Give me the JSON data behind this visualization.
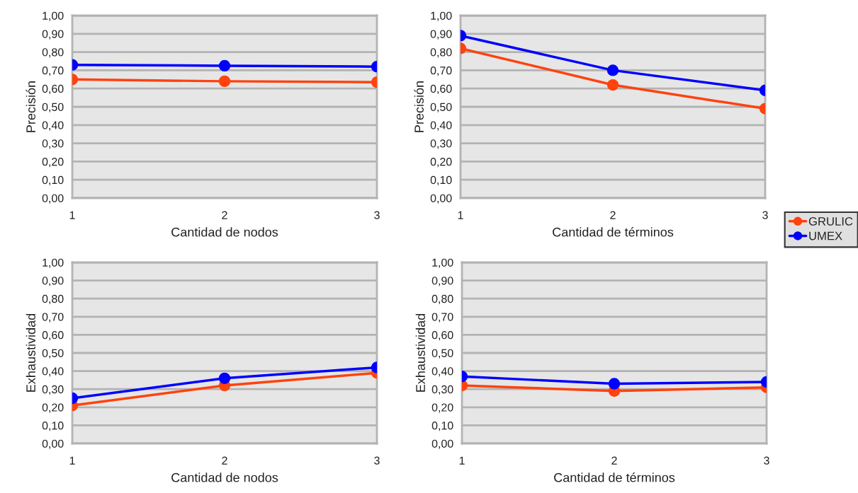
{
  "chart_data": [
    {
      "type": "line",
      "xlabel": "Cantidad de nodos",
      "ylabel": "Precisión",
      "categories": [
        "1",
        "2",
        "3"
      ],
      "ylim": [
        0,
        1
      ],
      "yticks": [
        {
          "value": 0,
          "label": "0,00"
        },
        {
          "value": 0.1,
          "label": "0,10"
        },
        {
          "value": 0.2,
          "label": "0,20"
        },
        {
          "value": 0.3,
          "label": "0,30"
        },
        {
          "value": 0.4,
          "label": "0,40"
        },
        {
          "value": 0.5,
          "label": "0,50"
        },
        {
          "value": 0.6,
          "label": "0,60"
        },
        {
          "value": 0.7,
          "label": "0,70"
        },
        {
          "value": 0.8,
          "label": "0,80"
        },
        {
          "value": 0.9,
          "label": "0,90"
        },
        {
          "value": 1,
          "label": "1,00"
        }
      ],
      "grid": "y",
      "marker": "circle",
      "series": [
        {
          "color": "#ff420e",
          "values": [
            0.65,
            0.64,
            0.635
          ]
        },
        {
          "color": "#0000ff",
          "values": [
            0.73,
            0.725,
            0.72
          ]
        }
      ]
    },
    {
      "type": "line",
      "xlabel": "Cantidad de términos",
      "ylabel": "Precisión",
      "categories": [
        "1",
        "2",
        "3"
      ],
      "ylim": [
        0,
        1
      ],
      "yticks": [
        {
          "value": 0,
          "label": "0,00"
        },
        {
          "value": 0.1,
          "label": "0,10"
        },
        {
          "value": 0.2,
          "label": "0,20"
        },
        {
          "value": 0.3,
          "label": "0,30"
        },
        {
          "value": 0.4,
          "label": "0,40"
        },
        {
          "value": 0.5,
          "label": "0,50"
        },
        {
          "value": 0.6,
          "label": "0,60"
        },
        {
          "value": 0.7,
          "label": "0,70"
        },
        {
          "value": 0.8,
          "label": "0,80"
        },
        {
          "value": 0.9,
          "label": "0,90"
        },
        {
          "value": 1,
          "label": "1,00"
        }
      ],
      "grid": "y",
      "marker": "circle",
      "legend": "right",
      "series": [
        {
          "name": "GRULIC",
          "color": "#ff420e",
          "values": [
            0.82,
            0.62,
            0.49
          ]
        },
        {
          "name": "UMEX",
          "color": "#0000ff",
          "values": [
            0.89,
            0.7,
            0.59
          ]
        }
      ]
    },
    {
      "type": "line",
      "xlabel": "Cantidad de nodos",
      "ylabel": "Exhaustividad",
      "categories": [
        "1",
        "2",
        "3"
      ],
      "ylim": [
        0,
        1
      ],
      "yticks": [
        {
          "value": 0,
          "label": "0,00"
        },
        {
          "value": 0.1,
          "label": "0,10"
        },
        {
          "value": 0.2,
          "label": "0,20"
        },
        {
          "value": 0.3,
          "label": "0,30"
        },
        {
          "value": 0.4,
          "label": "0,40"
        },
        {
          "value": 0.5,
          "label": "0,50"
        },
        {
          "value": 0.6,
          "label": "0,60"
        },
        {
          "value": 0.7,
          "label": "0,70"
        },
        {
          "value": 0.8,
          "label": "0,80"
        },
        {
          "value": 0.9,
          "label": "0,90"
        },
        {
          "value": 1,
          "label": "1,00"
        }
      ],
      "grid": "y",
      "marker": "circle",
      "series": [
        {
          "color": "#ff420e",
          "values": [
            0.21,
            0.32,
            0.39
          ]
        },
        {
          "color": "#0000ff",
          "values": [
            0.25,
            0.36,
            0.42
          ]
        }
      ]
    },
    {
      "type": "line",
      "xlabel": "Cantidad de términos",
      "ylabel": "Exhaustividad",
      "categories": [
        "1",
        "2",
        "3"
      ],
      "ylim": [
        0,
        1
      ],
      "yticks": [
        {
          "value": 0,
          "label": "0,00"
        },
        {
          "value": 0.1,
          "label": "0,10"
        },
        {
          "value": 0.2,
          "label": "0,20"
        },
        {
          "value": 0.3,
          "label": "0,30"
        },
        {
          "value": 0.4,
          "label": "0,40"
        },
        {
          "value": 0.5,
          "label": "0,50"
        },
        {
          "value": 0.6,
          "label": "0,60"
        },
        {
          "value": 0.7,
          "label": "0,70"
        },
        {
          "value": 0.8,
          "label": "0,80"
        },
        {
          "value": 0.9,
          "label": "0,90"
        },
        {
          "value": 1,
          "label": "1,00"
        }
      ],
      "grid": "y",
      "marker": "circle",
      "series": [
        {
          "color": "#ff420e",
          "values": [
            0.32,
            0.29,
            0.31
          ]
        },
        {
          "color": "#0000ff",
          "values": [
            0.37,
            0.33,
            0.34
          ]
        }
      ]
    }
  ]
}
